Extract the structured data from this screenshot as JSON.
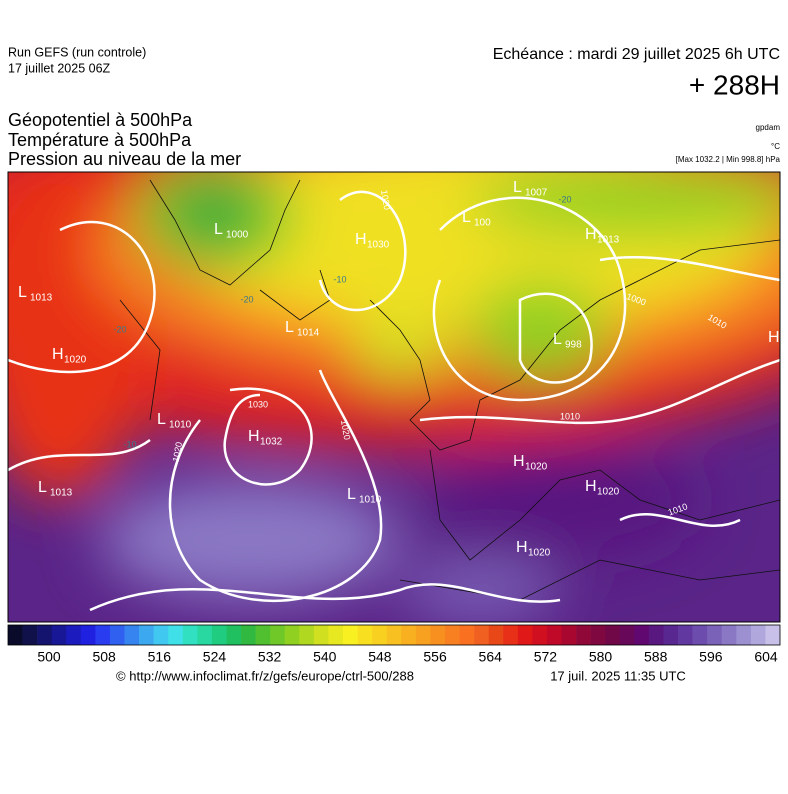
{
  "header": {
    "run": "Run GEFS (run controle)",
    "run_date": "17 juillet 2025 06Z",
    "valid": "Echéance : mardi 29 juillet 2025 6h UTC",
    "lead": "+ 288H"
  },
  "titles": [
    "Géopotentiel à 500hPa",
    "Température à 500hPa",
    "Pression au niveau de la mer"
  ],
  "units": {
    "geopotential": "gpdam",
    "temperature": "°C",
    "pressure": "[Max 1032.2 | Min 998.8] hPa"
  },
  "map": {
    "centers": [
      {
        "symbol": "L",
        "value": "1013"
      },
      {
        "symbol": "H",
        "value": "1020"
      },
      {
        "symbol": "L",
        "value": "1000"
      },
      {
        "symbol": "H",
        "value": "1030"
      },
      {
        "symbol": "L",
        "value": "1014"
      },
      {
        "symbol": "L",
        "value": "1007"
      },
      {
        "symbol": "L",
        "value": "100"
      },
      {
        "symbol": "H",
        "value": "1013"
      },
      {
        "symbol": "L",
        "value": "998"
      },
      {
        "symbol": "L",
        "value": "1010"
      },
      {
        "symbol": "H",
        "value": "1032"
      },
      {
        "symbol": "L",
        "value": "1013"
      },
      {
        "symbol": "L",
        "value": "1010"
      },
      {
        "symbol": "H",
        "value": "1020"
      },
      {
        "symbol": "H",
        "value": "1020"
      },
      {
        "symbol": "H",
        "value": "1020"
      },
      {
        "symbol": "H",
        "value": ""
      }
    ],
    "isobar_labels": [
      "1030",
      "1020",
      "1020",
      "1020",
      "1010",
      "1010",
      "1010",
      "1000"
    ],
    "temperature_labels": [
      "-20",
      "-20",
      "-20",
      "-10",
      "-10"
    ]
  },
  "colorbar": {
    "colors": [
      "#0a0a2a",
      "#10104a",
      "#14146e",
      "#181896",
      "#1c1cbe",
      "#2020e0",
      "#2a3cf0",
      "#3060f0",
      "#3684f0",
      "#3ca8f0",
      "#40c8f0",
      "#40e0e8",
      "#30e0c0",
      "#28d8a0",
      "#20cc80",
      "#20c060",
      "#30b840",
      "#50c030",
      "#70c828",
      "#90d020",
      "#b0d820",
      "#d0e020",
      "#e8e820",
      "#f8f020",
      "#f8e020",
      "#f8d020",
      "#f8c020",
      "#f8b020",
      "#f8a020",
      "#f89020",
      "#f88020",
      "#f87020",
      "#f06020",
      "#e84818",
      "#e83018",
      "#e01818",
      "#d01020",
      "#c00828",
      "#a80830",
      "#900838",
      "#800840",
      "#700848",
      "#680858",
      "#600870",
      "#581880",
      "#582890",
      "#6038a0",
      "#6c4cac",
      "#7a62b8",
      "#8a78c4",
      "#9c90d0",
      "#b0a8dc",
      "#c8c0e8"
    ],
    "ticks": [
      500,
      508,
      516,
      524,
      532,
      540,
      548,
      556,
      564,
      572,
      580,
      588,
      596,
      604
    ]
  },
  "footer": {
    "source": "© http://www.infoclimat.fr/z/gefs/europe/ctrl-500/288",
    "generated": "17 juil. 2025 11:35 UTC"
  }
}
